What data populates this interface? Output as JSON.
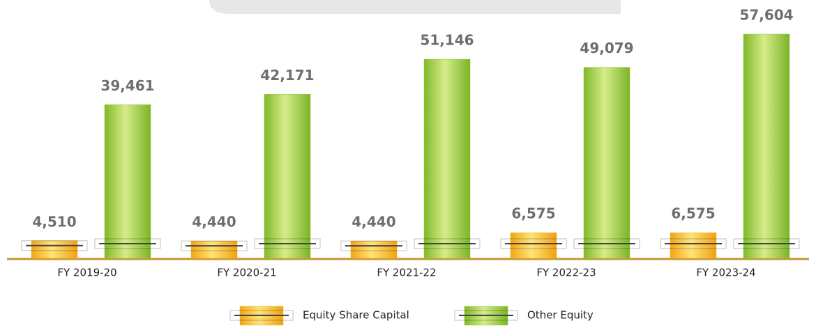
{
  "chart_data": {
    "type": "bar",
    "categories": [
      "FY 2019-20",
      "FY 2020-21",
      "FY 2021-22",
      "FY 2022-23",
      "FY 2023-24"
    ],
    "series": [
      {
        "name": "Equity Share Capital",
        "color": "#f5b51b",
        "values": [
          4510,
          4440,
          4440,
          6575,
          6575
        ],
        "value_labels": [
          "4,510",
          "4,440",
          "4,440",
          "6,575",
          "6,575"
        ]
      },
      {
        "name": "Other Equity",
        "color": "#95c93d",
        "values": [
          39461,
          42171,
          51146,
          49079,
          57604
        ],
        "value_labels": [
          "39,461",
          "42,171",
          "51,146",
          "49,079",
          "57,604"
        ]
      }
    ]
  }
}
